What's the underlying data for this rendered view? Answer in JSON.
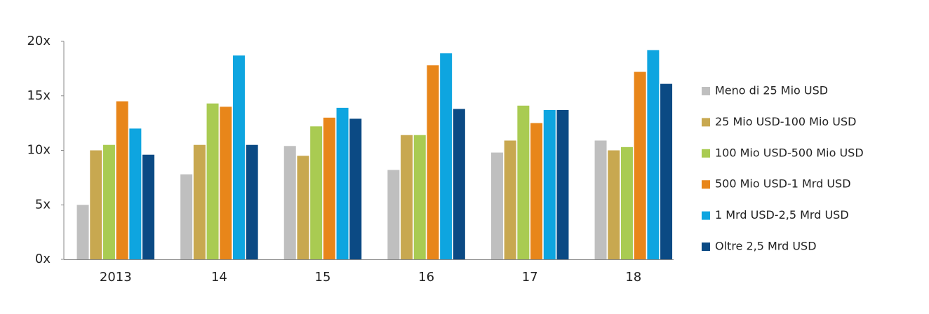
{
  "chart_data": {
    "type": "bar",
    "categories": [
      "2013",
      "14",
      "15",
      "16",
      "17",
      "18"
    ],
    "series": [
      {
        "name": "Meno di 25 Mio USD",
        "color": "#bfbfbf",
        "values": [
          5.0,
          7.8,
          10.4,
          8.2,
          9.8,
          10.9
        ]
      },
      {
        "name": "25 Mio USD-100 Mio USD",
        "color": "#c8a850",
        "values": [
          10.0,
          10.5,
          9.5,
          11.4,
          10.9,
          10.0
        ]
      },
      {
        "name": "100 Mio USD-500 Mio USD",
        "color": "#a9cb52",
        "values": [
          10.5,
          14.3,
          12.2,
          11.4,
          14.1,
          10.3
        ]
      },
      {
        "name": "500 Mio USD-1 Mrd USD",
        "color": "#e8861a",
        "values": [
          14.5,
          14.0,
          13.0,
          17.8,
          12.5,
          17.2
        ]
      },
      {
        "name": "1 Mrd USD-2,5 Mrd USD",
        "color": "#0ea5e0",
        "values": [
          12.0,
          18.7,
          13.9,
          18.9,
          13.7,
          19.2
        ]
      },
      {
        "name": "Oltre 2,5 Mrd USD",
        "color": "#0b4a84",
        "values": [
          9.6,
          10.5,
          12.9,
          13.8,
          13.7,
          16.1
        ]
      }
    ],
    "ylim": [
      0,
      20
    ],
    "yticks": [
      {
        "value": 0,
        "label": "0x"
      },
      {
        "value": 5,
        "label": "5x"
      },
      {
        "value": 10,
        "label": "10x"
      },
      {
        "value": 15,
        "label": "15x"
      },
      {
        "value": 20,
        "label": "20x"
      }
    ],
    "grid": false,
    "legend": "right"
  }
}
